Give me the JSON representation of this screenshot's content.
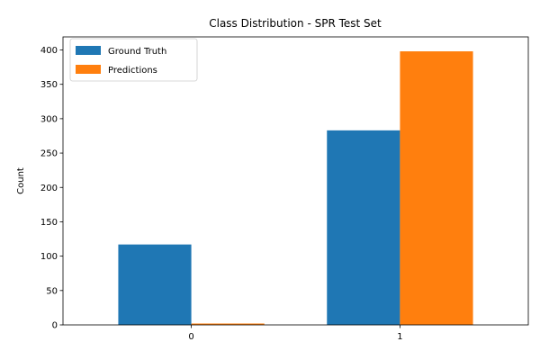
{
  "chart_data": {
    "type": "bar",
    "title": "Class Distribution - SPR Test Set",
    "xlabel": "",
    "ylabel": "Count",
    "categories": [
      "0",
      "1"
    ],
    "series": [
      {
        "name": "Ground Truth",
        "values": [
          117,
          283
        ],
        "color": "#1f77b4"
      },
      {
        "name": "Predictions",
        "values": [
          2,
          398
        ],
        "color": "#ff7f0e"
      }
    ],
    "ylim": [
      0,
      419
    ],
    "yticks": [
      0,
      50,
      100,
      150,
      200,
      250,
      300,
      350,
      400
    ],
    "grid": false,
    "legend": "top-left"
  }
}
